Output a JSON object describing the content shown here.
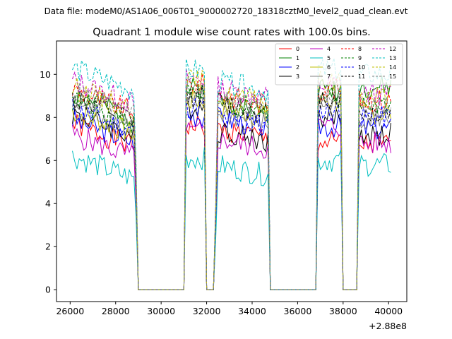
{
  "header": {
    "suptitle": "Data file: modeM0/AS1A06_006T01_9000002720_18318cztM0_level2_quad_clean.evt"
  },
  "chart_data": {
    "type": "line",
    "title": "Quadrant 1 module wise count rates with 100.0s bins.",
    "xlabel": "",
    "ylabel": "",
    "x_offset_label": "+2.88e8",
    "xlim": [
      25400,
      40800
    ],
    "ylim": [
      -0.55,
      11.55
    ],
    "x_ticks": [
      26000,
      28000,
      30000,
      32000,
      34000,
      36000,
      38000,
      40000
    ],
    "x_tick_labels": [
      "26000",
      "28000",
      "30000",
      "32000",
      "34000",
      "36000",
      "38000",
      "40000"
    ],
    "y_ticks": [
      0,
      2,
      4,
      6,
      8,
      10
    ],
    "y_tick_labels": [
      "0",
      "2",
      "4",
      "6",
      "8",
      "10"
    ],
    "legend_position": "upper-right",
    "segment_breaks_x": [
      [
        26100,
        28950
      ],
      [
        31050,
        31950
      ],
      [
        32400,
        34750
      ],
      [
        36850,
        37900
      ],
      [
        38650,
        40150
      ]
    ],
    "series": [
      {
        "name": "0",
        "color": "#ff0000",
        "dash": "solid",
        "levels": [
          6.9,
          7.6,
          7.0,
          6.8,
          6.7
        ]
      },
      {
        "name": "1",
        "color": "#008000",
        "dash": "solid",
        "levels": [
          8.3,
          9.3,
          8.3,
          9.3,
          9.4
        ]
      },
      {
        "name": "2",
        "color": "#0000ff",
        "dash": "solid",
        "levels": [
          7.1,
          8.1,
          7.5,
          7.6,
          7.5
        ]
      },
      {
        "name": "3",
        "color": "#000000",
        "dash": "solid",
        "levels": [
          7.4,
          8.5,
          6.9,
          8.0,
          7.2
        ]
      },
      {
        "name": "4",
        "color": "#bf00bf",
        "dash": "solid",
        "levels": [
          6.4,
          7.3,
          6.5,
          7.6,
          6.8
        ]
      },
      {
        "name": "5",
        "color": "#00bfbf",
        "dash": "solid",
        "levels": [
          5.4,
          6.1,
          5.3,
          6.0,
          5.8
        ]
      },
      {
        "name": "6",
        "color": "#bfbf00",
        "dash": "solid",
        "levels": [
          7.5,
          8.8,
          8.0,
          8.8,
          8.2
        ]
      },
      {
        "name": "7",
        "color": "#808080",
        "dash": "solid",
        "levels": [
          7.8,
          8.7,
          7.7,
          8.6,
          8.0
        ]
      },
      {
        "name": "8",
        "color": "#ff0000",
        "dash": "dashed",
        "levels": [
          8.5,
          9.5,
          8.6,
          9.3,
          8.8
        ]
      },
      {
        "name": "9",
        "color": "#008000",
        "dash": "dashed",
        "levels": [
          8.0,
          9.1,
          8.1,
          9.0,
          8.7
        ]
      },
      {
        "name": "10",
        "color": "#0000ff",
        "dash": "dashed",
        "levels": [
          7.6,
          8.5,
          7.5,
          8.3,
          8.0
        ]
      },
      {
        "name": "11",
        "color": "#000000",
        "dash": "dashed",
        "levels": [
          8.1,
          9.0,
          8.2,
          8.9,
          8.2
        ]
      },
      {
        "name": "12",
        "color": "#bf00bf",
        "dash": "dashed",
        "levels": [
          8.9,
          9.8,
          8.9,
          9.5,
          9.1
        ]
      },
      {
        "name": "13",
        "color": "#00bfbf",
        "dash": "dashed",
        "levels": [
          9.5,
          10.2,
          9.2,
          10.2,
          10.0
        ]
      },
      {
        "name": "14",
        "color": "#bfbf00",
        "dash": "dashed",
        "levels": [
          8.6,
          9.7,
          8.6,
          9.6,
          9.0
        ]
      },
      {
        "name": "15",
        "color": "#808080",
        "dash": "dashed",
        "levels": [
          8.4,
          9.4,
          8.4,
          9.2,
          8.6
        ]
      }
    ]
  }
}
